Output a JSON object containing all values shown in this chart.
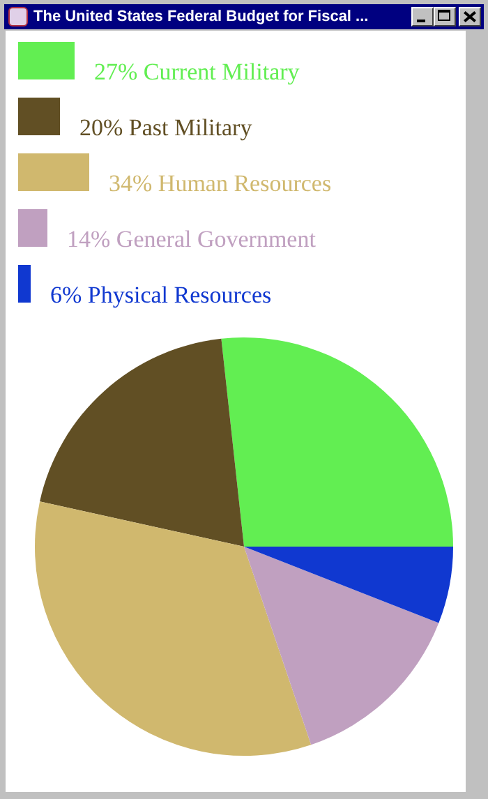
{
  "chart_data": {
    "type": "pie",
    "title": "The United States Federal Budget for Fiscal ...",
    "categories": [
      "Current Military",
      "Past Military",
      "Human Resources",
      "General Government",
      "Physical Resources"
    ],
    "values": [
      27,
      20,
      34,
      14,
      6
    ],
    "value_labels": [
      "27%",
      "20%",
      "34%",
      "14%",
      "6%"
    ],
    "colors": [
      "#62ee52",
      "#614f24",
      "#d0b86e",
      "#c0a0c0",
      "#1038d0"
    ],
    "legend": "top"
  }
}
